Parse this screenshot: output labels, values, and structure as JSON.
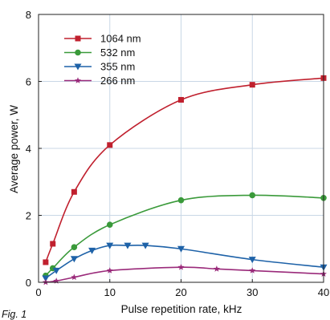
{
  "figure_label": "Fig. 1",
  "chart_data": {
    "type": "line",
    "xlabel": "Pulse repetition rate, kHz",
    "ylabel": "Average power,  W",
    "xlim": [
      0,
      40
    ],
    "ylim": [
      0,
      8
    ],
    "xticks": [
      0,
      10,
      20,
      30,
      40
    ],
    "yticks": [
      0,
      2,
      4,
      6,
      8
    ],
    "grid": true,
    "legend_position": "top-left",
    "series": [
      {
        "name": "1064 nm",
        "color": "#c0202e",
        "marker": "square",
        "x": [
          1,
          2,
          5,
          10,
          20,
          30,
          40
        ],
        "y": [
          0.6,
          1.15,
          2.7,
          4.1,
          5.45,
          5.9,
          6.1
        ]
      },
      {
        "name": "532 nm",
        "color": "#3a9a3a",
        "marker": "circle",
        "x": [
          1,
          2,
          5,
          10,
          20,
          30,
          40
        ],
        "y": [
          0.2,
          0.42,
          1.05,
          1.72,
          2.45,
          2.6,
          2.52
        ]
      },
      {
        "name": "355 nm",
        "color": "#1e62a8",
        "marker": "triangle-down",
        "x": [
          1,
          2.5,
          5,
          7.5,
          10,
          12.5,
          15,
          20,
          30,
          40
        ],
        "y": [
          0.12,
          0.35,
          0.7,
          0.95,
          1.1,
          1.1,
          1.1,
          1.0,
          0.68,
          0.45
        ]
      },
      {
        "name": "266 nm",
        "color": "#9a2a7a",
        "marker": "star",
        "x": [
          1,
          2.5,
          5,
          10,
          20,
          25,
          30,
          40
        ],
        "y": [
          0.0,
          0.04,
          0.15,
          0.35,
          0.45,
          0.4,
          0.35,
          0.25
        ]
      }
    ]
  }
}
